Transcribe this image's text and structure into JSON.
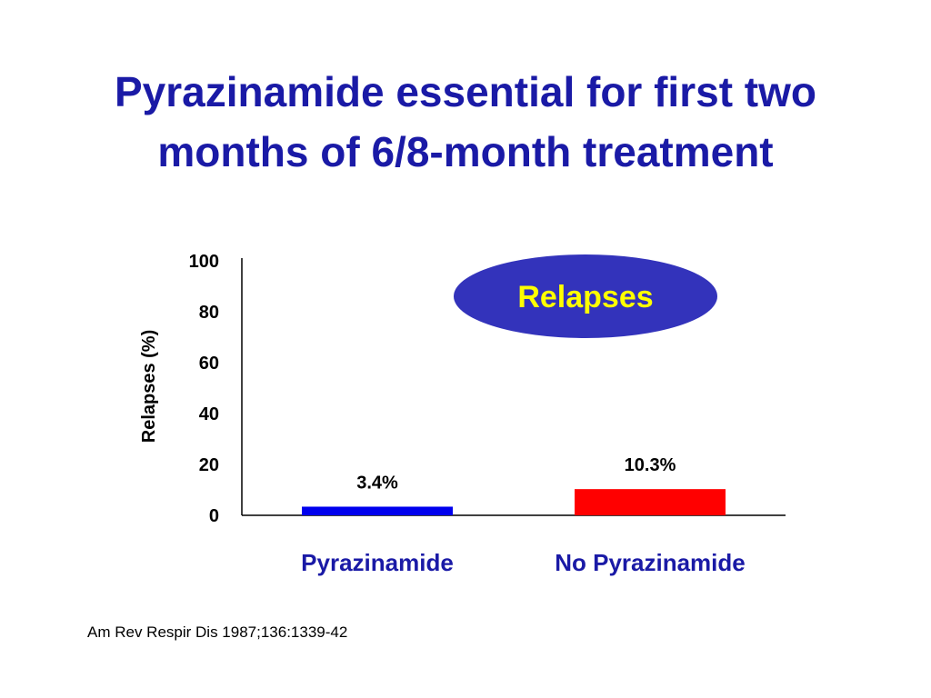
{
  "title": {
    "line1": "Pyrazinamide essential for first two",
    "line2": "months of 6/8-month treatment"
  },
  "citation": "Am Rev Respir Dis 1987;136:1339-42",
  "colors": {
    "title": "#1a1aa6",
    "bar_pyrazinamide": "#0000ee",
    "bar_no_pyrazinamide": "#ff0000",
    "category_label": "#1a1aa6",
    "legend_fill": "#3333bb",
    "legend_text": "#ffff00"
  },
  "legend": {
    "label": "Relapses",
    "placement": "top-right",
    "shape": "ellipse"
  },
  "chart_data": {
    "type": "bar",
    "categories": [
      "Pyrazinamide",
      "No Pyrazinamide"
    ],
    "values": [
      3.4,
      10.3
    ],
    "data_labels": [
      "3.4%",
      "10.3%"
    ],
    "ylabel": "Relapses (%)",
    "xlabel": "",
    "ylim": [
      0,
      100
    ],
    "yticks": [
      0,
      20,
      40,
      60,
      80,
      100
    ],
    "grid": false
  }
}
